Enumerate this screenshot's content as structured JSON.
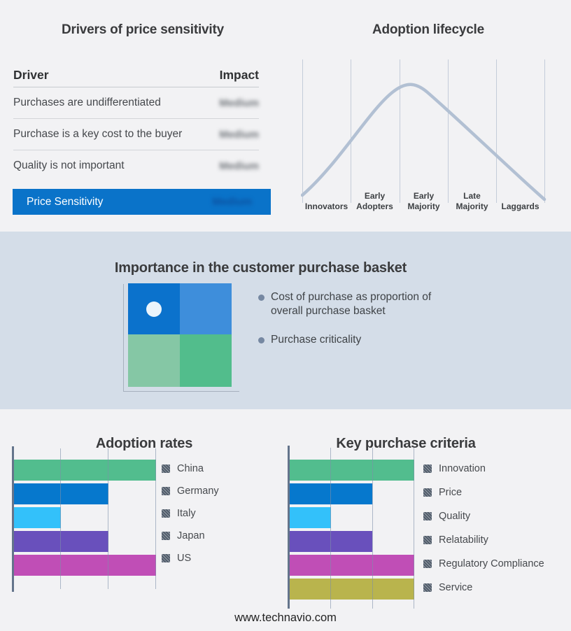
{
  "footer": {
    "url": "www.technavio.com"
  },
  "colors": {
    "page_bg": "#f2f2f4",
    "band_bg": "#d4dde8",
    "accent_blue_row": "#0a73c9",
    "curve": "#b2c0d3",
    "quadrants": [
      "#0b72cc",
      "#3e8edb",
      "#85c7a5",
      "#52bd8c"
    ],
    "bar_green": "#52bd8e",
    "bar_blue": "#0678cd",
    "bar_cyan": "#33c1fa",
    "bar_purple": "#6950bc",
    "bar_magenta": "#c04eb6",
    "bar_olive": "#b9b44d"
  },
  "basket": {
    "title": "Importance in the customer purchase basket",
    "bullets": [
      "Cost of purchase as proportion of overall purchase basket",
      "Purchase criticality"
    ]
  },
  "chart_data": [
    {
      "id": "adoption_rates",
      "type": "bar",
      "orientation": "horizontal",
      "title": "Adoption rates",
      "categories": [
        "China",
        "Germany",
        "Italy",
        "Japan",
        "US"
      ],
      "values": [
        3,
        2,
        1,
        2,
        3
      ],
      "xlim": [
        0,
        3
      ],
      "grid": true,
      "legend_position": "right",
      "colors": [
        "#52bd8e",
        "#0678cd",
        "#33c1fa",
        "#6950bc",
        "#c04eb6"
      ]
    },
    {
      "id": "key_purchase_criteria",
      "type": "bar",
      "orientation": "horizontal",
      "title": "Key purchase criteria",
      "categories": [
        "Innovation",
        "Price",
        "Quality",
        "Relatability",
        "Regulatory Compliance",
        "Service"
      ],
      "values": [
        3,
        2,
        1,
        2,
        3,
        3
      ],
      "xlim": [
        0,
        3
      ],
      "grid": true,
      "legend_position": "right",
      "colors": [
        "#52bd8e",
        "#0678cd",
        "#33c1fa",
        "#6950bc",
        "#c04eb6",
        "#b9b44d"
      ]
    },
    {
      "id": "adoption_lifecycle",
      "type": "line",
      "title": "Adoption lifecycle",
      "categories": [
        "Innovators",
        "Early Adopters",
        "Early Majority",
        "Late Majority",
        "Laggards"
      ],
      "description": "Bell curve rising from Innovators, peaking at Early Majority, falling through Laggards",
      "grid": true,
      "curve_color": "#b2c0d3"
    },
    {
      "id": "drivers_of_price_sensitivity",
      "type": "table",
      "title": "Drivers of price sensitivity",
      "columns": [
        "Driver",
        "Impact"
      ],
      "rows": [
        [
          "Purchases are undifferentiated",
          "Medium"
        ],
        [
          "Purchase is a key cost to the buyer",
          "Medium"
        ],
        [
          "Quality is not important",
          "Medium"
        ],
        [
          "Price Sensitivity",
          "Medium"
        ]
      ],
      "note": "Impact values are blurred/obfuscated in the source image"
    }
  ]
}
